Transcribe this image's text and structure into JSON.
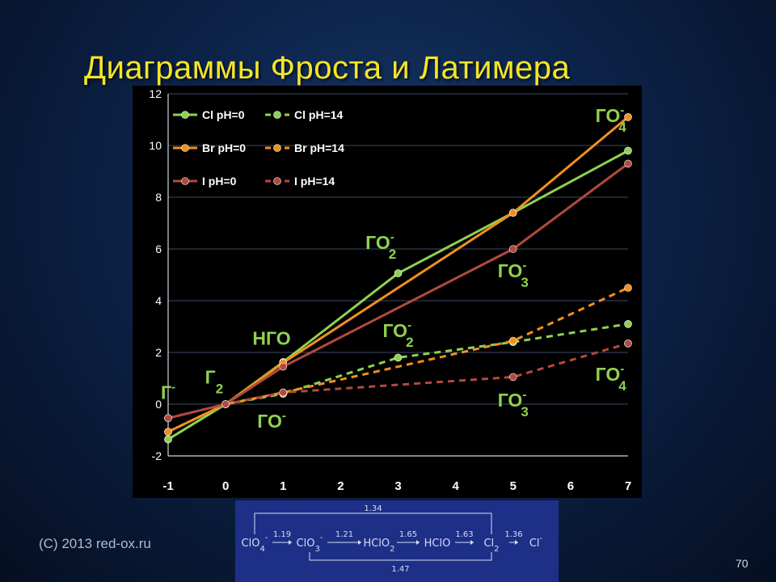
{
  "slide": {
    "title": "Диаграммы Фроста и Латимера",
    "copyright": "(C) 2013 red-ox.ru",
    "page_number": "70"
  },
  "chart_data": {
    "type": "line",
    "xlim": [
      -1,
      7
    ],
    "ylim": [
      -2,
      12
    ],
    "x_ticks": [
      "-1",
      "0",
      "1",
      "2",
      "3",
      "4",
      "5",
      "6",
      "7"
    ],
    "y_ticks": [
      "12",
      "10",
      "8",
      "6",
      "4",
      "2",
      "0",
      "-2"
    ],
    "grid": "horizontal",
    "legend_position": "top-left",
    "series": [
      {
        "name": "Cl pH=0",
        "color": "#8fd14f",
        "dash": false,
        "points": [
          [
            -1,
            -1.36
          ],
          [
            0,
            0
          ],
          [
            1,
            1.63
          ],
          [
            3,
            5.06
          ],
          [
            5,
            7.4
          ],
          [
            7,
            9.8
          ]
        ]
      },
      {
        "name": "Cl pH=14",
        "color": "#8fd14f",
        "dash": true,
        "points": [
          [
            -1,
            -1.36
          ],
          [
            0,
            0
          ],
          [
            1,
            0.4
          ],
          [
            3,
            1.8
          ],
          [
            5,
            2.4
          ],
          [
            7,
            3.1
          ]
        ]
      },
      {
        "name": "Br pH=0",
        "color": "#f0901e",
        "dash": false,
        "points": [
          [
            -1,
            -1.07
          ],
          [
            0,
            0
          ],
          [
            1,
            1.6
          ],
          [
            5,
            7.4
          ],
          [
            7,
            11.1
          ]
        ]
      },
      {
        "name": "Br pH=14",
        "color": "#f0901e",
        "dash": true,
        "points": [
          [
            -1,
            -1.07
          ],
          [
            0,
            0
          ],
          [
            1,
            0.45
          ],
          [
            5,
            2.45
          ],
          [
            7,
            4.5
          ]
        ]
      },
      {
        "name": "I pH=0",
        "color": "#b24a3e",
        "dash": false,
        "points": [
          [
            -1,
            -0.54
          ],
          [
            0,
            0
          ],
          [
            1,
            1.45
          ],
          [
            5,
            6
          ],
          [
            7,
            9.3
          ]
        ]
      },
      {
        "name": "I pH=14",
        "color": "#b24a3e",
        "dash": true,
        "points": [
          [
            -1,
            -0.54
          ],
          [
            0,
            0
          ],
          [
            1,
            0.45
          ],
          [
            5,
            1.05
          ],
          [
            7,
            2.35
          ]
        ]
      }
    ],
    "annotations": [
      {
        "base": "Г",
        "sup": "-",
        "sub": "",
        "x": -1,
        "y": 0.2
      },
      {
        "base": "Г",
        "sup": "",
        "sub": "2",
        "x": -0.2,
        "y": 0.8
      },
      {
        "base": "НГО",
        "sup": "",
        "sub": "",
        "x": 0.8,
        "y": 2.3
      },
      {
        "base": "ГО",
        "sup": "-",
        "sub": "",
        "x": 0.8,
        "y": -0.9
      },
      {
        "base": "ГО",
        "sup": "-",
        "sub": "2",
        "x": 2.7,
        "y": 6
      },
      {
        "base": "ГО",
        "sup": "-",
        "sub": "2",
        "x": 3,
        "y": 2.6
      },
      {
        "base": "ГО",
        "sup": "-",
        "sub": "3",
        "x": 5,
        "y": 4.9
      },
      {
        "base": "ГО",
        "sup": "-",
        "sub": "3",
        "x": 5,
        "y": -0.1
      },
      {
        "base": "ГО",
        "sup": "-",
        "sub": "4",
        "x": 6.7,
        "y": 10.9
      },
      {
        "base": "ГО",
        "sup": "-",
        "sub": "4",
        "x": 6.7,
        "y": 0.9
      }
    ]
  },
  "latimer": {
    "species": [
      {
        "base": "ClO",
        "sub": "4",
        "sup": "-"
      },
      {
        "base": "ClO",
        "sub": "3",
        "sup": "-"
      },
      {
        "base": "HClO",
        "sub": "2",
        "sup": ""
      },
      {
        "base": "HClO",
        "sub": "",
        "sup": ""
      },
      {
        "base": "Cl",
        "sub": "2",
        "sup": ""
      },
      {
        "base": "Cl",
        "sub": "",
        "sup": "-"
      }
    ],
    "potentials": [
      "1.19",
      "1.21",
      "1.65",
      "1.63",
      "1.36"
    ],
    "top_potential": "1.34",
    "bottom_potential": "1.47"
  }
}
